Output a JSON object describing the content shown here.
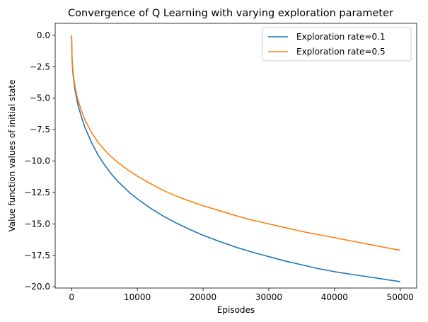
{
  "chart_data": {
    "type": "line",
    "title": "Convergence of Q Learning with varying exploration parameter",
    "xlabel": "Episodes",
    "ylabel": "Value function values of initial state",
    "xlim": [
      -2500,
      52500
    ],
    "ylim": [
      -20.1,
      0.95
    ],
    "x_ticks": [
      0,
      10000,
      20000,
      30000,
      40000,
      50000
    ],
    "x_tick_labels": [
      "0",
      "10000",
      "20000",
      "30000",
      "40000",
      "50000"
    ],
    "y_ticks": [
      0,
      -2.5,
      -5,
      -7.5,
      -10,
      -12.5,
      -15,
      -17.5,
      -20
    ],
    "y_tick_labels": [
      "0.0",
      "−2.5",
      "−5.0",
      "−7.5",
      "−10.0",
      "−12.5",
      "−15.0",
      "−17.5",
      "−20.0"
    ],
    "grid": false,
    "legend_position": "top-right",
    "series": [
      {
        "name": "Exploration rate=0.1",
        "color": "#1f77b4",
        "x": [
          0,
          50,
          100,
          200,
          350,
          500,
          750,
          1000,
          1500,
          2000,
          2500,
          3000,
          4000,
          5000,
          6000,
          7000,
          8000,
          9000,
          10000,
          12000,
          14000,
          16000,
          18000,
          20000,
          22500,
          25000,
          27500,
          30000,
          32500,
          35000,
          37500,
          40000,
          42500,
          45000,
          47500,
          50000
        ],
        "y": [
          0.0,
          -1.6,
          -2.3,
          -3.0,
          -3.7,
          -4.3,
          -5.0,
          -5.6,
          -6.5,
          -7.3,
          -7.9,
          -8.5,
          -9.5,
          -10.3,
          -11.0,
          -11.6,
          -12.1,
          -12.6,
          -13.0,
          -13.75,
          -14.4,
          -14.95,
          -15.45,
          -15.9,
          -16.4,
          -16.85,
          -17.25,
          -17.6,
          -17.95,
          -18.25,
          -18.55,
          -18.8,
          -19.0,
          -19.2,
          -19.4,
          -19.6
        ]
      },
      {
        "name": "Exploration rate=0.5",
        "color": "#ff7f0e",
        "x": [
          0,
          50,
          100,
          200,
          350,
          500,
          750,
          1000,
          1500,
          2000,
          2500,
          3000,
          4000,
          5000,
          6000,
          7000,
          8000,
          9000,
          10000,
          12000,
          14000,
          16000,
          18000,
          20000,
          22500,
          25000,
          27500,
          30000,
          32500,
          35000,
          37500,
          40000,
          42500,
          45000,
          47500,
          50000
        ],
        "y": [
          0.0,
          -1.5,
          -2.2,
          -2.8,
          -3.5,
          -4.0,
          -4.7,
          -5.2,
          -6.0,
          -6.7,
          -7.2,
          -7.7,
          -8.5,
          -9.1,
          -9.65,
          -10.1,
          -10.5,
          -10.85,
          -11.2,
          -11.8,
          -12.35,
          -12.8,
          -13.2,
          -13.55,
          -13.95,
          -14.35,
          -14.7,
          -15.0,
          -15.3,
          -15.6,
          -15.85,
          -16.1,
          -16.35,
          -16.6,
          -16.85,
          -17.1
        ]
      }
    ]
  }
}
